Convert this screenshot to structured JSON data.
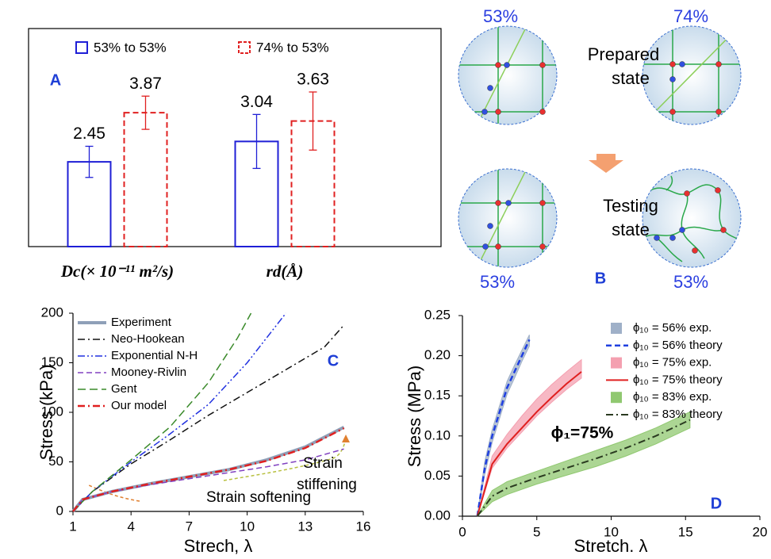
{
  "chart_data": [
    {
      "type": "bar",
      "label": "A",
      "categories": [
        "Dc(× 10⁻¹¹ m²/s)",
        "rd(Å)"
      ],
      "series": [
        {
          "name": "53% to 53%",
          "color": "#1f1fd6",
          "values": [
            2.45,
            3.04
          ],
          "errors": [
            0.45,
            0.78
          ]
        },
        {
          "name": "74% to 53%",
          "color": "#e02020",
          "dash": "dashed",
          "values": [
            3.87,
            3.63
          ],
          "errors": [
            0.48,
            0.84
          ]
        }
      ]
    },
    {
      "type": "line",
      "label": "C",
      "xlabel": "Strech, λ",
      "ylabel": "Stress (kPa)",
      "xlim": [
        1,
        16
      ],
      "xticks": [
        1,
        4,
        7,
        10,
        13,
        16
      ],
      "ylim": [
        0,
        200
      ],
      "yticks": [
        0,
        50,
        100,
        150,
        200
      ],
      "series": [
        {
          "name": "Experiment",
          "color": "#8fa0b8",
          "width": 4,
          "x": [
            1,
            1.5,
            3,
            5,
            7,
            9,
            11,
            13,
            15
          ],
          "values": [
            0,
            12,
            20,
            28,
            35,
            42,
            52,
            65,
            85
          ]
        },
        {
          "name": "Neo-Hookean",
          "color": "#111111",
          "dash": "dashdot",
          "x": [
            1,
            2,
            4,
            6,
            8,
            10,
            12,
            14,
            15
          ],
          "values": [
            0,
            20,
            48,
            72,
            97,
            120,
            143,
            166,
            188
          ]
        },
        {
          "name": "Exponential N-H",
          "color": "#2030e0",
          "dash": "dashdotdot",
          "x": [
            1,
            2,
            4,
            6,
            8,
            10,
            12
          ],
          "values": [
            0,
            20,
            50,
            78,
            108,
            150,
            200
          ]
        },
        {
          "name": "Mooney-Rivlin",
          "color": "#8040c0",
          "dash": "dashed",
          "x": [
            1,
            1.5,
            3,
            5,
            7,
            9,
            11,
            13,
            15
          ],
          "values": [
            0,
            12,
            20,
            27,
            33,
            39,
            45,
            52,
            63
          ]
        },
        {
          "name": "Gent",
          "color": "#3a8a2a",
          "dash": "longdash",
          "x": [
            1,
            2,
            4,
            6,
            8,
            9.5,
            10.2
          ],
          "values": [
            0,
            20,
            52,
            85,
            130,
            175,
            200
          ]
        },
        {
          "name": "Our model",
          "color": "#e02020",
          "dash": "dashdot",
          "width": 2.5,
          "x": [
            1,
            1.5,
            3,
            5,
            7,
            9,
            11,
            13,
            15
          ],
          "values": [
            0,
            12,
            20,
            28,
            35,
            42,
            51,
            64,
            84
          ]
        }
      ],
      "annotations": [
        {
          "text": "Strain softening",
          "color": "#2b3fe0"
        },
        {
          "text": "Strain",
          "color": "#e02020"
        },
        {
          "text": "stiffening",
          "color": "#e02020"
        }
      ]
    },
    {
      "type": "line",
      "label": "D",
      "xlabel": "Stretch. λ",
      "ylabel": "Stress (MPa)",
      "xlim": [
        0,
        20
      ],
      "xticks": [
        0,
        5,
        10,
        15,
        20
      ],
      "ylim": [
        0,
        0.25
      ],
      "yticks": [
        {
          "value": 0,
          "label": "0.00"
        },
        0.05,
        {
          "value": 0.1,
          "label": "0.10"
        },
        0.15,
        {
          "value": 0.2,
          "label": "0.20"
        },
        0.25
      ],
      "series": [
        {
          "name": "ϕ₁₀ = 56% exp.",
          "color": "#9fb0c8",
          "x": [
            1,
            1.5,
            2,
            2.5,
            3,
            3.5,
            4,
            4.5
          ],
          "lower": [
            0,
            0.052,
            0.092,
            0.122,
            0.152,
            0.172,
            0.193,
            0.212
          ],
          "upper": [
            0,
            0.068,
            0.108,
            0.138,
            0.168,
            0.188,
            0.207,
            0.226
          ]
        },
        {
          "name": "ϕ₁₀ = 56% theory",
          "color": "#1f3fe0",
          "dash": "dashed",
          "width": 2.5,
          "x": [
            1,
            1.5,
            2,
            2.5,
            3,
            3.5,
            4,
            4.5
          ],
          "values": [
            0,
            0.06,
            0.1,
            0.13,
            0.16,
            0.18,
            0.2,
            0.22
          ]
        },
        {
          "name": "ϕ₁₀ = 75% exp.",
          "color": "#f4a0b0",
          "x": [
            1,
            2,
            3,
            4,
            5,
            6,
            7,
            8
          ],
          "lower": [
            0,
            0.06,
            0.085,
            0.105,
            0.125,
            0.142,
            0.158,
            0.172
          ],
          "upper": [
            0,
            0.075,
            0.102,
            0.125,
            0.146,
            0.164,
            0.18,
            0.195
          ]
        },
        {
          "name": "ϕ₁₀ = 75% theory",
          "color": "#e02020",
          "width": 2,
          "x": [
            1,
            2,
            3,
            4,
            5,
            6,
            7,
            8
          ],
          "values": [
            0,
            0.065,
            0.09,
            0.11,
            0.13,
            0.148,
            0.165,
            0.18
          ]
        },
        {
          "name": "ϕ₁₀ = 83% exp.",
          "color": "#90c870",
          "x": [
            1,
            2,
            3,
            5,
            7,
            9,
            11,
            13,
            15.3
          ],
          "lower": [
            0,
            0.018,
            0.027,
            0.04,
            0.051,
            0.062,
            0.075,
            0.09,
            0.11
          ],
          "upper": [
            0,
            0.032,
            0.043,
            0.056,
            0.069,
            0.082,
            0.095,
            0.11,
            0.13
          ]
        },
        {
          "name": "ϕ₁₀ = 83% theory",
          "color": "#2a3a20",
          "dash": "dashdot",
          "width": 2,
          "x": [
            1,
            2,
            3,
            5,
            7,
            9,
            11,
            13,
            15.3
          ],
          "values": [
            0,
            0.025,
            0.035,
            0.048,
            0.06,
            0.072,
            0.085,
            0.1,
            0.12
          ]
        }
      ],
      "annotations": [
        {
          "text": "ϕ₁=75%",
          "color": "#2b3fe0"
        }
      ]
    }
  ],
  "diagram": {
    "label": "B",
    "top_left": "53%",
    "top_right": "74%",
    "prepared": [
      "Prepared",
      "state"
    ],
    "testing": [
      "Testing",
      "state"
    ],
    "bottom_left": "53%",
    "bottom_right": "53%"
  }
}
